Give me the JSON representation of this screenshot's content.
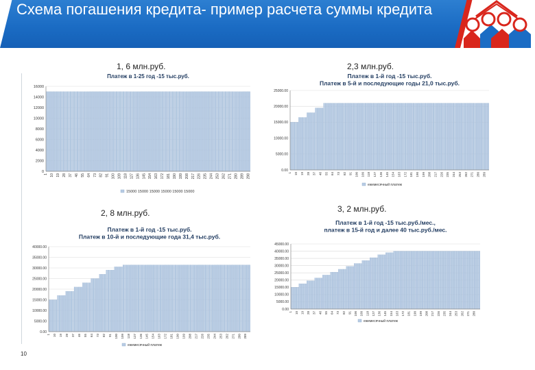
{
  "header": {
    "title": "Схема погашения кредита- пример расчета суммы кредита"
  },
  "page_number": "10",
  "colors": {
    "accent_blue": "#1b6cc4",
    "accent_red": "#d9261c",
    "bar_fill": "#b8cce4",
    "bar_stroke": "#8eaacb",
    "gridline": "#d9d9d9"
  },
  "icons": [
    "company-logo-icon"
  ],
  "chart_data": [
    {
      "type": "bar",
      "caption": "1, 6 млн.руб.",
      "title": "Платеж в 1-25 год -15 тыс.руб.",
      "ylim": [
        0,
        16000
      ],
      "ytick_labels": [
        "0",
        "2000",
        "4000",
        "6000",
        "8000",
        "10000",
        "12000",
        "14000",
        "16000"
      ],
      "xtick_labels": [
        "1",
        "10",
        "19",
        "28",
        "37",
        "46",
        "55",
        "64",
        "73",
        "82",
        "91",
        "100",
        "109",
        "118",
        "127",
        "136",
        "145",
        "154",
        "163",
        "172",
        "181",
        "190",
        "199",
        "208",
        "217",
        "226",
        "235",
        "244",
        "253",
        "262",
        "271",
        "280",
        "289",
        "298"
      ],
      "legend": "15000 15000 15000 15000 15000 15000",
      "legend_position": "bottom",
      "x_first": 1,
      "x_last": 300,
      "segments": [
        {
          "from": 1,
          "to": 300,
          "value": 15000
        }
      ],
      "grid": true
    },
    {
      "type": "bar",
      "caption": "2,3 млн.руб.",
      "title": "Платеж в 1-й год -15 тыс.руб.\nПлатеж в 5-й и последующие годы 21,0 тыс.руб.",
      "ylim": [
        0,
        25000
      ],
      "ytick_labels": [
        "0.00",
        "5000.00",
        "10000.00",
        "15000.00",
        "20000.00",
        "25000.00"
      ],
      "xtick_labels": [
        "1",
        "10",
        "19",
        "28",
        "37",
        "46",
        "55",
        "64",
        "73",
        "82",
        "91",
        "100",
        "109",
        "118",
        "127",
        "136",
        "145",
        "154",
        "163",
        "172",
        "181",
        "190",
        "199",
        "208",
        "217",
        "226",
        "235",
        "244",
        "253",
        "262",
        "271",
        "280",
        "289"
      ],
      "legend": "ежемесячный платеж",
      "legend_position": "bottom",
      "x_first": 1,
      "x_last": 295,
      "segments": [
        {
          "from": 1,
          "to": 12,
          "value": 15000
        },
        {
          "from": 13,
          "to": 24,
          "value": 16500
        },
        {
          "from": 25,
          "to": 36,
          "value": 18000
        },
        {
          "from": 37,
          "to": 48,
          "value": 19500
        },
        {
          "from": 49,
          "to": 295,
          "value": 21000
        }
      ],
      "grid": true
    },
    {
      "type": "bar",
      "caption": "2, 8 млн.руб.",
      "title": "Платеж в 1-й год -15 тыс.руб.\nПлатеж в 10-й и последующие года 31,4 тыс.руб.",
      "ylim": [
        0,
        40000
      ],
      "ytick_labels": [
        "0.00",
        "5000.00",
        "10000.00",
        "15000.00",
        "20000.00",
        "25000.00",
        "30000.00",
        "35000.00",
        "40000.00"
      ],
      "xtick_labels": [
        "1",
        "10",
        "19",
        "28",
        "37",
        "46",
        "55",
        "64",
        "73",
        "82",
        "91",
        "100",
        "109",
        "118",
        "127",
        "136",
        "145",
        "154",
        "163",
        "172",
        "181",
        "190",
        "199",
        "208",
        "217",
        "226",
        "235",
        "244",
        "253",
        "262",
        "271",
        "280",
        "289"
      ],
      "legend": "ежемесячный платеж",
      "legend_position": "bottom",
      "x_first": 1,
      "x_last": 295,
      "segments": [
        {
          "from": 1,
          "to": 12,
          "value": 15000
        },
        {
          "from": 13,
          "to": 24,
          "value": 17000
        },
        {
          "from": 25,
          "to": 36,
          "value": 19000
        },
        {
          "from": 37,
          "to": 48,
          "value": 21000
        },
        {
          "from": 49,
          "to": 60,
          "value": 23000
        },
        {
          "from": 61,
          "to": 72,
          "value": 25000
        },
        {
          "from": 73,
          "to": 84,
          "value": 27000
        },
        {
          "from": 85,
          "to": 96,
          "value": 29000
        },
        {
          "from": 97,
          "to": 108,
          "value": 30500
        },
        {
          "from": 109,
          "to": 295,
          "value": 31400
        }
      ],
      "grid": true
    },
    {
      "type": "bar",
      "caption": "3, 2 млн.руб.",
      "title": "Платеж в 1-й год -15 тыс.руб./мес.,\nплатеж в 15-й год и далее 40 тыс.руб./мес.",
      "ylim": [
        0,
        45000
      ],
      "ytick_labels": [
        "0.00",
        "5000.00",
        "10000.00",
        "15000.00",
        "20000.00",
        "25000.00",
        "30000.00",
        "35000.00",
        "40000.00",
        "45000.00"
      ],
      "xtick_labels": [
        "1",
        "10",
        "19",
        "28",
        "37",
        "46",
        "55",
        "64",
        "73",
        "82",
        "91",
        "100",
        "109",
        "118",
        "127",
        "136",
        "145",
        "154",
        "163",
        "172",
        "181",
        "190",
        "199",
        "208",
        "217",
        "226",
        "235",
        "244",
        "253",
        "262",
        "271",
        "280"
      ],
      "legend": "ежемесячный платеж",
      "legend_position": "bottom",
      "x_first": 1,
      "x_last": 288,
      "segments": [
        {
          "from": 1,
          "to": 12,
          "value": 15000
        },
        {
          "from": 13,
          "to": 24,
          "value": 17500
        },
        {
          "from": 25,
          "to": 36,
          "value": 19500
        },
        {
          "from": 37,
          "to": 48,
          "value": 21500
        },
        {
          "from": 49,
          "to": 60,
          "value": 23500
        },
        {
          "from": 61,
          "to": 72,
          "value": 25500
        },
        {
          "from": 73,
          "to": 84,
          "value": 27500
        },
        {
          "from": 85,
          "to": 96,
          "value": 29500
        },
        {
          "from": 97,
          "to": 108,
          "value": 31500
        },
        {
          "from": 109,
          "to": 120,
          "value": 33500
        },
        {
          "from": 121,
          "to": 132,
          "value": 35500
        },
        {
          "from": 133,
          "to": 144,
          "value": 37500
        },
        {
          "from": 145,
          "to": 156,
          "value": 39000
        },
        {
          "from": 157,
          "to": 288,
          "value": 40000
        }
      ],
      "grid": true
    }
  ]
}
